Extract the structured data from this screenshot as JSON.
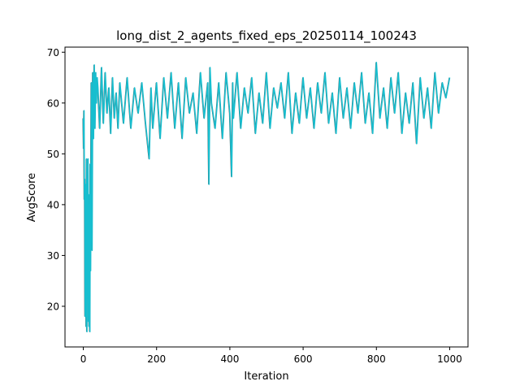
{
  "chart_data": {
    "type": "line",
    "title": "long_dist_2_agents_fixed_eps_20250114_100243",
    "xlabel": "Iteration",
    "ylabel": "AvgScore",
    "xlim": [
      -50,
      1050
    ],
    "ylim": [
      12,
      71
    ],
    "xticks": [
      0,
      200,
      400,
      600,
      800,
      1000
    ],
    "yticks": [
      20,
      30,
      40,
      50,
      60,
      70
    ],
    "grid": false,
    "line_color": "#17becf",
    "underlay_color": "#555555",
    "series": [
      {
        "x": [
          0,
          1,
          2,
          3,
          4,
          5,
          6,
          7,
          8,
          9,
          10,
          11,
          12,
          13,
          14,
          15,
          16,
          17,
          18,
          19,
          20,
          22,
          24,
          26,
          28,
          30,
          32,
          34,
          36,
          38,
          40,
          45,
          50,
          55,
          60,
          65,
          70,
          75,
          80,
          85,
          90,
          95,
          100,
          110,
          120,
          130,
          140,
          150,
          160,
          170,
          180,
          185,
          190,
          200,
          210,
          220,
          230,
          240,
          250,
          260,
          270,
          280,
          290,
          300,
          310,
          320,
          330,
          340,
          343,
          346,
          350,
          360,
          370,
          380,
          390,
          400,
          405,
          408,
          410,
          420,
          430,
          440,
          450,
          460,
          470,
          480,
          490,
          500,
          510,
          520,
          530,
          540,
          550,
          560,
          570,
          580,
          590,
          600,
          610,
          620,
          630,
          640,
          650,
          660,
          670,
          680,
          690,
          700,
          710,
          720,
          730,
          740,
          750,
          760,
          770,
          780,
          790,
          800,
          810,
          820,
          830,
          840,
          850,
          860,
          870,
          880,
          890,
          900,
          910,
          920,
          930,
          940,
          950,
          960,
          970,
          980,
          990,
          1000
        ],
        "y": [
          57,
          51,
          58.5,
          41,
          45,
          18,
          35,
          44,
          16,
          49,
          15,
          45,
          22,
          49,
          17,
          40,
          16,
          42,
          15,
          48,
          27,
          64,
          31,
          66,
          53,
          67.5,
          55,
          66,
          60,
          65,
          63,
          55,
          67,
          56,
          66,
          58,
          63,
          54,
          65,
          57,
          62,
          55,
          64,
          56,
          65,
          55,
          63,
          58,
          64,
          56,
          49,
          63,
          55,
          64,
          53,
          65,
          57,
          66,
          55,
          64,
          53,
          65,
          58,
          62,
          54,
          66,
          57,
          64,
          44,
          67,
          60,
          55,
          64,
          53,
          66,
          58,
          45.5,
          64,
          57,
          66,
          55,
          63,
          58,
          65,
          54,
          62,
          56,
          66,
          55,
          63,
          59,
          64,
          57,
          66,
          54,
          62,
          56,
          65,
          57,
          63,
          55,
          64,
          58,
          66,
          56,
          62,
          54,
          65,
          57,
          63,
          55,
          64,
          58,
          66,
          56,
          62,
          54,
          68,
          57,
          63,
          55,
          65,
          58,
          66,
          54,
          62,
          56,
          64,
          52,
          65,
          57,
          63,
          55,
          66,
          58,
          64,
          61,
          65
        ]
      }
    ]
  }
}
